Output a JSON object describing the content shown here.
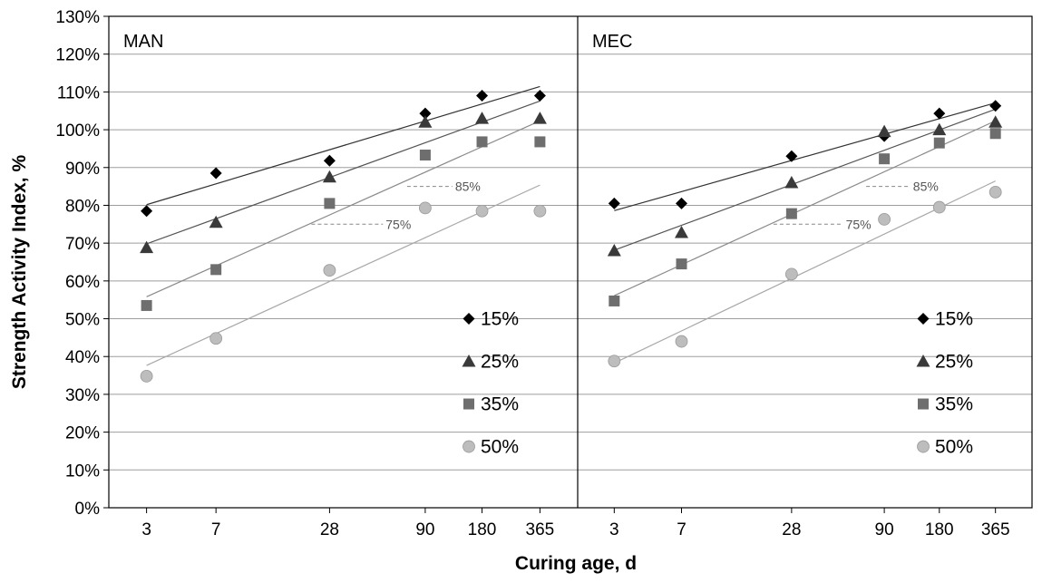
{
  "chart_data": {
    "type": "scatter",
    "xlabel": "Curing age, d",
    "ylabel": "Strength Activity Index, %",
    "x_scale": "log",
    "x_ticks": [
      3,
      7,
      28,
      90,
      180,
      365
    ],
    "x_tick_labels": [
      "3",
      "7",
      "28",
      "90",
      "180",
      "365"
    ],
    "ylim": [
      0,
      130
    ],
    "y_ticks": [
      0,
      10,
      20,
      30,
      40,
      50,
      60,
      70,
      80,
      90,
      100,
      110,
      120,
      130
    ],
    "y_tick_labels": [
      "0%",
      "10%",
      "20%",
      "30%",
      "40%",
      "50%",
      "60%",
      "70%",
      "80%",
      "90%",
      "100%",
      "110%",
      "120%",
      "130%"
    ],
    "grid": true,
    "legend_placement": "bottom-right",
    "trendlines": true,
    "series_styles": [
      {
        "name": "15%",
        "marker": "diamond",
        "color": "#000000",
        "line_color": "#333333"
      },
      {
        "name": "25%",
        "marker": "triangle",
        "color": "#3a3a3a",
        "line_color": "#555555"
      },
      {
        "name": "35%",
        "marker": "square",
        "color": "#6e6e6e",
        "line_color": "#8a8a8a"
      },
      {
        "name": "50%",
        "marker": "circle",
        "color": "#bdbdbd",
        "line_color": "#a8a8a8"
      }
    ],
    "panels": [
      {
        "title": "MAN",
        "series": [
          {
            "name": "15%",
            "x": [
              3,
              7,
              28,
              90,
              180,
              365
            ],
            "y": [
              78.5,
              88.5,
              91.8,
              104.3,
              109,
              109
            ]
          },
          {
            "name": "25%",
            "x": [
              3,
              7,
              28,
              90,
              180,
              365
            ],
            "y": [
              68.8,
              75.5,
              87.5,
              102,
              103,
              103
            ]
          },
          {
            "name": "35%",
            "x": [
              3,
              7,
              28,
              90,
              180,
              365
            ],
            "y": [
              53.5,
              63,
              80.5,
              93.3,
              96.8,
              96.8
            ]
          },
          {
            "name": "50%",
            "x": [
              3,
              7,
              28,
              90,
              180,
              365
            ],
            "y": [
              34.8,
              44.8,
              62.8,
              79.3,
              78.5,
              78.5
            ]
          }
        ],
        "reference_labels": [
          {
            "text": "75%",
            "value": 75,
            "x_from": 28,
            "x_to": 60
          },
          {
            "text": "85%",
            "value": 85,
            "x_from": 90,
            "x_to": 140
          }
        ]
      },
      {
        "title": "MEC",
        "series": [
          {
            "name": "15%",
            "x": [
              3,
              7,
              28,
              90,
              180,
              365
            ],
            "y": [
              80.5,
              80.5,
              93,
              98.3,
              104.3,
              106.3
            ]
          },
          {
            "name": "25%",
            "x": [
              3,
              7,
              28,
              90,
              180,
              365
            ],
            "y": [
              68,
              72.8,
              86,
              99.5,
              100,
              102
            ]
          },
          {
            "name": "35%",
            "x": [
              3,
              7,
              28,
              90,
              180,
              365
            ],
            "y": [
              54.7,
              64.5,
              77.8,
              92.3,
              96.5,
              99
            ]
          },
          {
            "name": "50%",
            "x": [
              3,
              7,
              28,
              90,
              180,
              365
            ],
            "y": [
              38.8,
              44,
              61.8,
              76.3,
              79.5,
              83.5
            ]
          }
        ],
        "reference_labels": [
          {
            "text": "75%",
            "value": 75,
            "x_from": 28,
            "x_to": 60
          },
          {
            "text": "85%",
            "value": 85,
            "x_from": 90,
            "x_to": 140
          }
        ]
      }
    ]
  }
}
